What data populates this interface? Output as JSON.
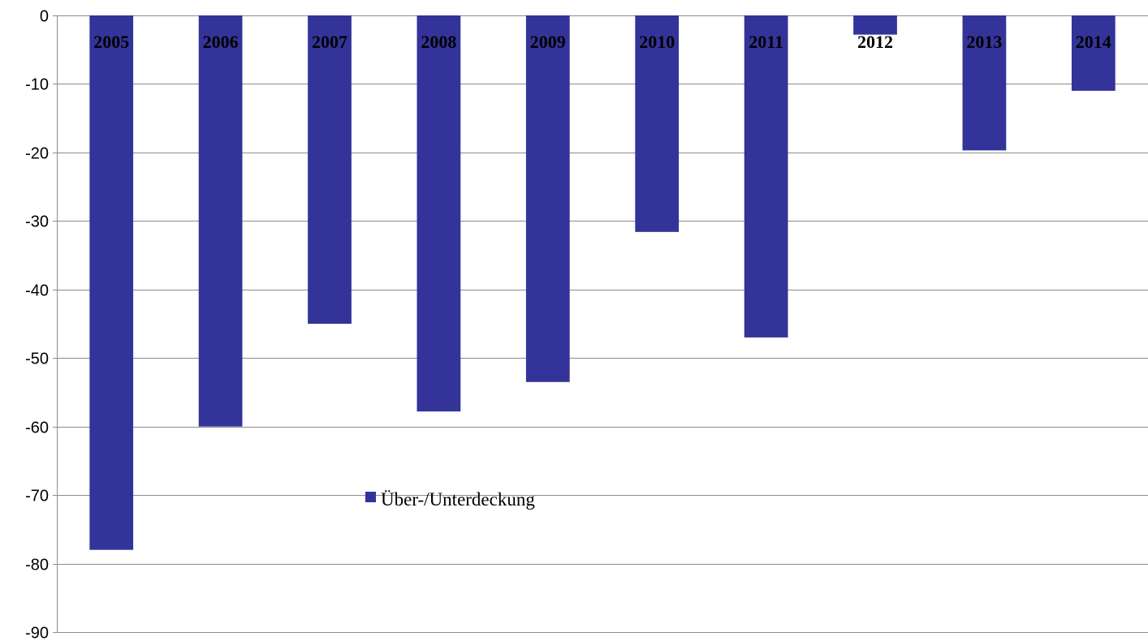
{
  "chart_data": {
    "type": "bar",
    "categories": [
      "2005",
      "2006",
      "2007",
      "2008",
      "2009",
      "2010",
      "2011",
      "2012",
      "2013",
      "2014"
    ],
    "series": [
      {
        "name": "Über-/Unterdeckung",
        "color": "#333399",
        "values": [
          -78,
          -60,
          -45,
          -57.8,
          -53.5,
          -31.6,
          -47,
          -2.8,
          -19.7,
          -11
        ]
      }
    ],
    "title": "",
    "xlabel": "",
    "ylabel": "",
    "ylim": [
      -90,
      0
    ],
    "yticks": [
      0,
      -10,
      -20,
      -30,
      -40,
      -50,
      -60,
      -70,
      -80,
      -90
    ],
    "grid": true,
    "legend": "inside-lower-center",
    "category_label_position": "top"
  }
}
